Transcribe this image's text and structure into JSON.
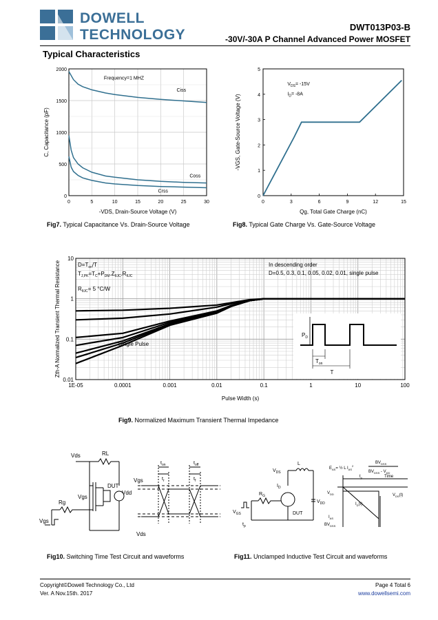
{
  "header": {
    "company_line1": "DOWELL",
    "company_line2": "TECHNOLOGY",
    "part_number": "DWT013P03-B",
    "subtitle": "-30V/-30A P Channel Advanced Power MOSFET",
    "brand_color": "#3b6f97"
  },
  "section_title": "Typical Characteristics",
  "chart_data": [
    {
      "type": "line",
      "id": "fig7",
      "xlabel": "-VDS, Drain-Source Voltage (V)",
      "ylabel": "C, Capacitance (pF)",
      "xlim": [
        0,
        30
      ],
      "ylim": [
        0,
        2000
      ],
      "xticks": [
        0,
        5,
        10,
        15,
        20,
        25,
        30
      ],
      "yticks": [
        0,
        500,
        1000,
        1500,
        2000
      ],
      "annotation": "Frequency=1 MHZ",
      "grid": true,
      "series": [
        {
          "name": "Ciss",
          "x": [
            0,
            1,
            2,
            3,
            5,
            8,
            10,
            15,
            20,
            25,
            30
          ],
          "y": [
            1960,
            1830,
            1760,
            1720,
            1670,
            1620,
            1595,
            1550,
            1520,
            1495,
            1470
          ]
        },
        {
          "name": "Coss",
          "x": [
            0,
            0.5,
            1,
            2,
            3,
            5,
            8,
            10,
            15,
            20,
            25,
            30
          ],
          "y": [
            950,
            720,
            600,
            500,
            440,
            370,
            310,
            290,
            250,
            225,
            210,
            200
          ]
        },
        {
          "name": "Crss",
          "x": [
            0,
            0.5,
            1,
            2,
            3,
            5,
            8,
            10,
            15,
            20,
            25,
            30
          ],
          "y": [
            620,
            450,
            380,
            320,
            280,
            240,
            200,
            185,
            160,
            145,
            135,
            125
          ]
        }
      ]
    },
    {
      "type": "line",
      "id": "fig8",
      "xlabel": "Qg, Total Gate Charge (nC)",
      "ylabel": "-VGS, Gate-Source Voltage (V)",
      "xlim": [
        0,
        15
      ],
      "ylim": [
        0,
        5
      ],
      "xticks": [
        0,
        3,
        6,
        9,
        12,
        15
      ],
      "yticks": [
        0,
        1,
        2,
        3,
        4,
        5
      ],
      "annotation_vds": "V",
      "annotation_vds_sub": "DS",
      "annotation_vds_val": "= -15V",
      "annotation_id": "I",
      "annotation_id_sub": "D",
      "annotation_id_val": "= -8A",
      "grid": false,
      "series": [
        {
          "name": "VGS",
          "x": [
            0,
            3.3,
            4.1,
            10.3,
            14.8
          ],
          "y": [
            0,
            2.3,
            2.9,
            2.9,
            4.55
          ]
        }
      ]
    },
    {
      "type": "line",
      "id": "fig9",
      "xscale": "log",
      "yscale": "log",
      "xlabel": "Pulse Width (s)",
      "ylabel": "Zth-A Normalized Transient Thermal Resistance",
      "xlim": [
        1e-05,
        100
      ],
      "ylim": [
        0.01,
        10
      ],
      "xtick_labels": [
        "1E-05",
        "0.0001",
        "0.001",
        "0.01",
        "0.1",
        "1",
        "10",
        "100"
      ],
      "ytick_labels": [
        "0.01",
        "0.1",
        "1",
        "10"
      ],
      "legend_title": "In descending order",
      "legend_values": "D=0.5, 0.3, 0.1, 0.05, 0.02, 0.01, single pulse",
      "single_pulse_label": "Single Pulse",
      "grid": true,
      "series": [
        {
          "name": "D=0.5",
          "x": [
            1e-05,
            0.0001,
            0.001,
            0.01,
            0.02,
            0.05,
            0.1,
            1,
            100
          ],
          "y": [
            0.5,
            0.52,
            0.58,
            0.7,
            0.8,
            0.95,
            1.0,
            1.0,
            1.0
          ]
        },
        {
          "name": "D=0.3",
          "x": [
            1e-05,
            0.0001,
            0.001,
            0.01,
            0.02,
            0.05,
            0.1,
            1,
            100
          ],
          "y": [
            0.3,
            0.33,
            0.42,
            0.62,
            0.75,
            0.93,
            1.0,
            1.0,
            1.0
          ]
        },
        {
          "name": "D=0.1",
          "x": [
            1e-05,
            0.0001,
            0.001,
            0.01,
            0.02,
            0.05,
            0.1,
            1,
            100
          ],
          "y": [
            0.11,
            0.14,
            0.28,
            0.5,
            0.68,
            0.9,
            1.0,
            1.0,
            1.0
          ]
        },
        {
          "name": "D=0.05",
          "x": [
            1e-05,
            0.0001,
            0.001,
            0.01,
            0.02,
            0.05,
            0.1,
            1,
            100
          ],
          "y": [
            0.07,
            0.11,
            0.26,
            0.48,
            0.67,
            0.9,
            1.0,
            1.0,
            1.0
          ]
        },
        {
          "name": "D=0.02",
          "x": [
            1e-05,
            0.0001,
            0.001,
            0.01,
            0.02,
            0.05,
            0.1,
            1,
            100
          ],
          "y": [
            0.045,
            0.09,
            0.24,
            0.46,
            0.66,
            0.9,
            1.0,
            1.0,
            1.0
          ]
        },
        {
          "name": "D=0.01",
          "x": [
            1e-05,
            0.0001,
            0.001,
            0.01,
            0.02,
            0.05,
            0.1,
            1,
            100
          ],
          "y": [
            0.035,
            0.08,
            0.23,
            0.45,
            0.65,
            0.9,
            1.0,
            1.0,
            1.0
          ]
        },
        {
          "name": "single pulse",
          "x": [
            1e-05,
            0.0001,
            0.001,
            0.01,
            0.02,
            0.05,
            0.1,
            1,
            100
          ],
          "y": [
            0.025,
            0.07,
            0.22,
            0.44,
            0.64,
            0.9,
            1.0,
            1.0,
            1.0
          ]
        }
      ]
    }
  ],
  "captions": {
    "fig7_num": "Fig7.",
    "fig7_text": " Typical Capacitance Vs. Drain-Source Voltage",
    "fig8_num": "Fig8.",
    "fig8_text": " Typical Gate Charge Vs. Gate-Source Voltage",
    "fig9_num": "Fig9.",
    "fig9_text": " Normalized Maximum Transient Thermal Impedance",
    "fig10_num": "Fig10.",
    "fig10_text": " Switching Time Test Circuit and waveforms",
    "fig11_num": "Fig11.",
    "fig11_text": " Unclamped Inductive Test Circuit and waveforms"
  },
  "fig9_labels": {
    "eq1": "D=T",
    "eq1_sub": "on",
    "eq1_tail": "/T",
    "eq2": "T",
    "eq2_sub": "J,PK",
    "eq2_tail": "=T",
    "eq2_sub2": "C",
    "eq2_tail2": "+P",
    "eq2_sub3": "DM",
    "eq2_tail3": ".Z",
    "eq2_sub4": "θJC",
    "eq2_tail4": ".R",
    "eq2_sub5": "θJC",
    "eq3": "R",
    "eq3_sub": "θJC",
    "eq3_tail": "= 5 °C/W",
    "pd": "P",
    "pd_sub": "D",
    "ton": "T",
    "ton_sub": "on",
    "t": "T"
  },
  "fig10_labels": {
    "vds_top": "Vds",
    "rl": "RL",
    "rg": "Rg",
    "vgs": "Vgs",
    "dut": "DUT",
    "vdd": "Vdd",
    "vgs_src": "Vgs",
    "vgs_wave": "Vgs",
    "vds_wave": "Vds",
    "ton": "t",
    "ton_sub": "on",
    "toff": "t",
    "toff_sub": "off",
    "tr": "t",
    "tr_sub": "r",
    "tf": "t",
    "tf_sub": "f"
  },
  "fig11_labels": {
    "vds": "V",
    "vds_sub": "DS",
    "l": "L",
    "id": "I",
    "id_sub": "D",
    "vdd": "V",
    "vdd_sub": "DD",
    "rg": "R",
    "rg_sub": "G",
    "vgs": "V",
    "vgs_sub": "GS",
    "tp": "t",
    "tp_sub": "p",
    "dut": "DUT",
    "formula": "E",
    "formula_sub": "AS",
    "formula_mid": "= ½ L I",
    "formula_mid_sub": "AS",
    "formula_mid_sup": "2",
    "bv_num": "BV",
    "bv_num_sub": "DSS",
    "bv_den": "BV",
    "bv_den_sub": "DSS",
    "bv_den_tail": " - V",
    "bv_den_sub2": "DD",
    "time": "Time",
    "w_tp": "t",
    "w_tp_sub": "p",
    "w_vdd": "V",
    "w_vdd_sub": "DD",
    "w_id": "I",
    "w_id_sub": "D",
    "w_id_t": "(t)",
    "w_vds": "V",
    "w_vds_sub": "DS",
    "w_vds_t": "(t)",
    "w_ias": "I",
    "w_ias_sub": "AS",
    "w_bv": "BV",
    "w_bv_sub": "DSS"
  },
  "footer": {
    "copyright": "Copyright©Dowell Technology Co., Ltd",
    "version": "Ver. A  Nov.15th. 2017",
    "page": "Page 4 Total 6",
    "website": "www.dowellsemi.com",
    "link_color": "#1a3c9e"
  }
}
